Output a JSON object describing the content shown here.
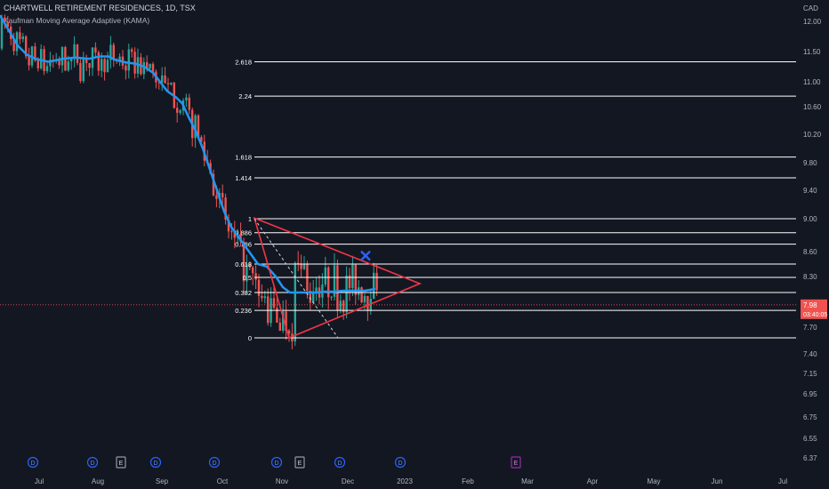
{
  "header": {
    "title": "CHARTWELL RETIREMENT RESIDENCES, 1D, TSX",
    "indicator": "Kaufman Moving Average Adaptive (KAMA)"
  },
  "colors": {
    "background": "#131722",
    "up": "#26a69a",
    "down": "#ef5350",
    "kama": "#2196f3",
    "triangle": "#f23645",
    "fib": "#ffffff",
    "text": "#b2b5be",
    "event_blue": "#2962ff",
    "event_purple": "#9c27b0"
  },
  "chart_data": {
    "type": "candlestick",
    "currency": "CAD",
    "y_ticks": [
      "12.00",
      "11.50",
      "11.00",
      "10.60",
      "10.20",
      "9.80",
      "9.40",
      "9.00",
      "8.60",
      "8.30",
      "8.00",
      "7.70",
      "7.40",
      "7.15",
      "6.95",
      "6.75",
      "6.55",
      "6.37"
    ],
    "x_ticks": [
      "Jul",
      "Aug",
      "Sep",
      "Oct",
      "Nov",
      "Dec",
      "2023",
      "Feb",
      "Mar",
      "Apr",
      "May",
      "Jun",
      "Jul"
    ],
    "last_price": {
      "value": "7.98",
      "countdown": "03:40:05"
    },
    "fib_levels": [
      {
        "label": "2.618",
        "price": 11.33
      },
      {
        "label": "2.24",
        "price": 10.77
      },
      {
        "label": "1.618",
        "price": 9.88
      },
      {
        "label": "1.414",
        "price": 9.58
      },
      {
        "label": "1",
        "price": 9.0
      },
      {
        "label": "0.886",
        "price": 8.83
      },
      {
        "label": "0.786",
        "price": 8.69
      },
      {
        "label": "0.618",
        "price": 8.45
      },
      {
        "label": "0.5",
        "price": 8.29
      },
      {
        "label": "0.382",
        "price": 8.12
      },
      {
        "label": "0.236",
        "price": 7.91
      },
      {
        "label": "0",
        "price": 7.58
      }
    ],
    "kama": [
      [
        0,
        12.1
      ],
      [
        10,
        11.85
      ],
      [
        20,
        11.6
      ],
      [
        30,
        11.45
      ],
      [
        40,
        11.38
      ],
      [
        55,
        11.33
      ],
      [
        70,
        11.38
      ],
      [
        85,
        11.4
      ],
      [
        100,
        11.38
      ],
      [
        112,
        11.42
      ],
      [
        122,
        11.42
      ],
      [
        130,
        11.36
      ],
      [
        142,
        11.32
      ],
      [
        152,
        11.3
      ],
      [
        162,
        11.25
      ],
      [
        172,
        11.15
      ],
      [
        180,
        11.0
      ],
      [
        188,
        10.85
      ],
      [
        198,
        10.75
      ],
      [
        205,
        10.65
      ],
      [
        212,
        10.45
      ],
      [
        220,
        10.25
      ],
      [
        228,
        10.0
      ],
      [
        236,
        9.7
      ],
      [
        244,
        9.4
      ],
      [
        252,
        9.1
      ],
      [
        260,
        8.9
      ],
      [
        270,
        8.75
      ],
      [
        280,
        8.6
      ],
      [
        290,
        8.45
      ],
      [
        300,
        8.42
      ],
      [
        310,
        8.3
      ],
      [
        318,
        8.18
      ],
      [
        326,
        8.12
      ],
      [
        336,
        8.12
      ],
      [
        346,
        8.12
      ],
      [
        356,
        8.12
      ],
      [
        366,
        8.13
      ],
      [
        376,
        8.13
      ],
      [
        386,
        8.14
      ],
      [
        396,
        8.14
      ],
      [
        410,
        8.14
      ],
      [
        422,
        8.16
      ]
    ],
    "triangle": [
      [
        286,
        9.01
      ],
      [
        472,
        8.22
      ],
      [
        325,
        7.58
      ]
    ],
    "trend_line": [
      [
        286,
        9.0
      ],
      [
        380,
        7.58
      ]
    ],
    "x_mark": {
      "x": 411,
      "price": 8.55
    },
    "event_markers": [
      {
        "x": 37,
        "label": "D",
        "kind": "dividend"
      },
      {
        "x": 104,
        "label": "D",
        "kind": "dividend"
      },
      {
        "x": 136,
        "label": "E",
        "kind": "earnings"
      },
      {
        "x": 175,
        "label": "D",
        "kind": "dividend"
      },
      {
        "x": 241,
        "label": "D",
        "kind": "dividend"
      },
      {
        "x": 311,
        "label": "D",
        "kind": "dividend"
      },
      {
        "x": 337,
        "label": "E",
        "kind": "earnings"
      },
      {
        "x": 382,
        "label": "D",
        "kind": "dividend"
      },
      {
        "x": 450,
        "label": "D",
        "kind": "dividend"
      },
      {
        "x": 580,
        "label": "E",
        "kind": "earnings-upcoming"
      }
    ]
  }
}
